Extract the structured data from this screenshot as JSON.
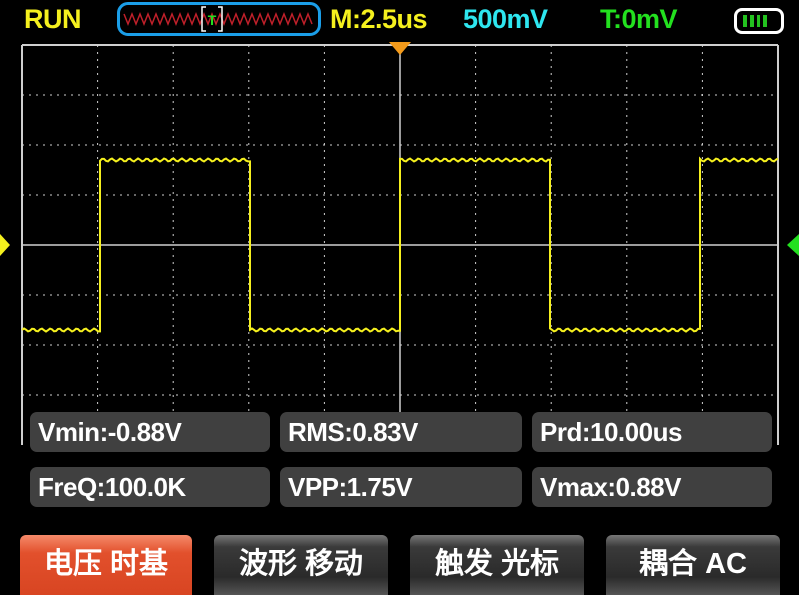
{
  "status": {
    "run_state": "RUN",
    "timebase": "M:2.5us",
    "volts_per_div": "500mV",
    "trigger_level": "T:0mV",
    "trigger_marker": "T",
    "battery_level": 1.0
  },
  "colors": {
    "status": "#f5f01e",
    "volts": "#2ee6f0",
    "trigger": "#23e01f",
    "waveform": "#f5f01e",
    "trigger_pointer": "#f39a1a",
    "active_button": "#e2502c"
  },
  "measurements": [
    {
      "label": "Vmin:-0.88V"
    },
    {
      "label": "RMS:0.83V"
    },
    {
      "label": "Prd:10.00us"
    },
    {
      "label": "FreQ:100.0K"
    },
    {
      "label": "VPP:1.75V"
    },
    {
      "label": "Vmax:0.88V"
    }
  ],
  "buttons": [
    {
      "label": "电压 时基",
      "active": true
    },
    {
      "label": "波形 移动",
      "active": false
    },
    {
      "label": "触发 光标",
      "active": false
    },
    {
      "label": "耦合 AC",
      "active": false
    }
  ]
}
